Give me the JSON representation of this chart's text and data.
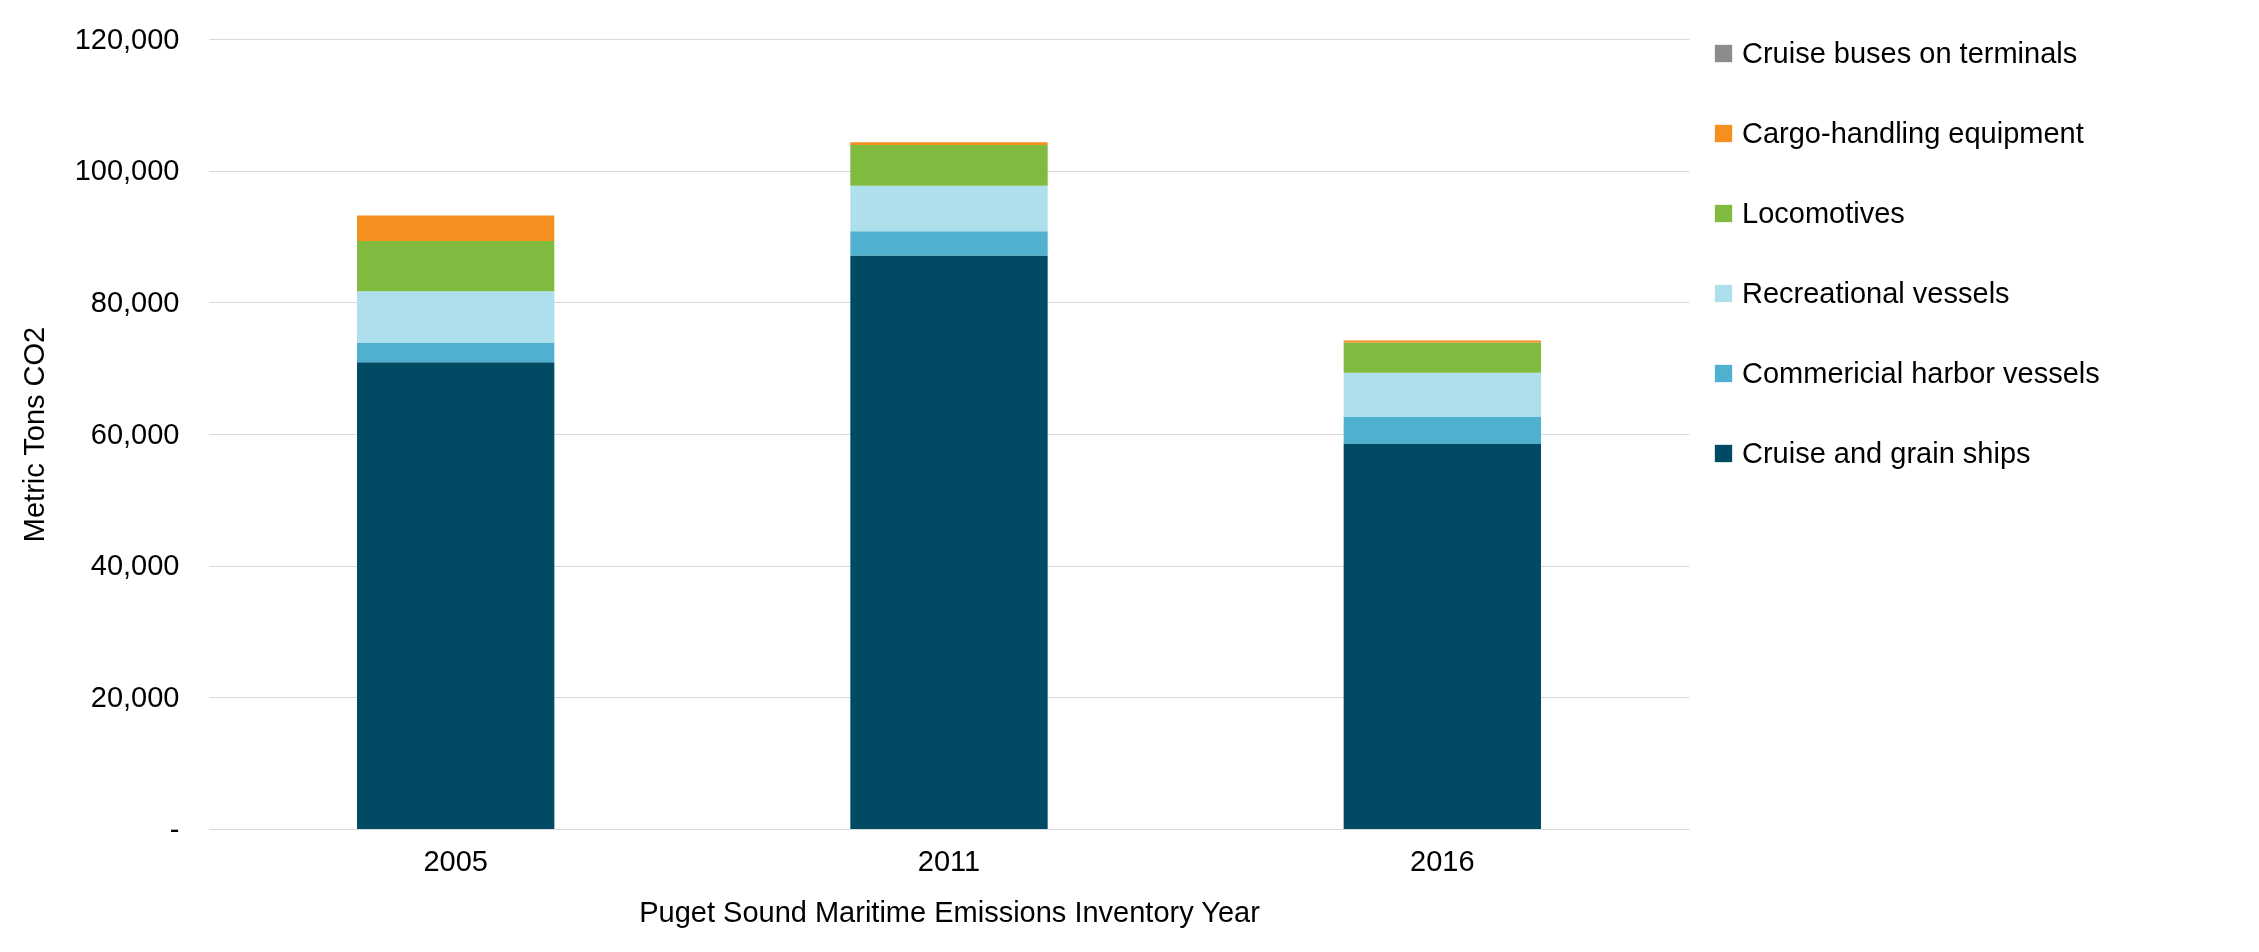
{
  "chart_data": {
    "type": "bar",
    "stacked": true,
    "xlabel": "Puget Sound Maritime Emissions Inventory Year",
    "ylabel": "Metric Tons CO2",
    "categories": [
      "2005",
      "2011",
      "2016"
    ],
    "series": [
      {
        "name": "Cruise and grain ships",
        "color": "#004a63",
        "values": [
          70900,
          87100,
          58500
        ]
      },
      {
        "name": "Commericial harbor vessels",
        "color": "#4fb0d0",
        "values": [
          3000,
          3700,
          4100
        ]
      },
      {
        "name": "Recreational vessels",
        "color": "#aedfec",
        "values": [
          7800,
          6900,
          6700
        ]
      },
      {
        "name": "Locomotives",
        "color": "#80ba3f",
        "values": [
          7600,
          6200,
          4600
        ]
      },
      {
        "name": "Cargo-handling equipment",
        "color": "#f58f1f",
        "values": [
          3900,
          400,
          300
        ]
      },
      {
        "name": "Cruise buses on terminals",
        "color": "#8c8c8c",
        "values": [
          0,
          0,
          0
        ]
      }
    ],
    "ylim": [
      0,
      120000
    ],
    "yticks": [
      {
        "value": 0,
        "label": "-"
      },
      {
        "value": 20000,
        "label": "20,000"
      },
      {
        "value": 40000,
        "label": "40,000"
      },
      {
        "value": 60000,
        "label": "60,000"
      },
      {
        "value": 80000,
        "label": "80,000"
      },
      {
        "value": 100000,
        "label": "100,000"
      },
      {
        "value": 120000,
        "label": "120,000"
      }
    ],
    "grid": "y",
    "legend": "right"
  }
}
